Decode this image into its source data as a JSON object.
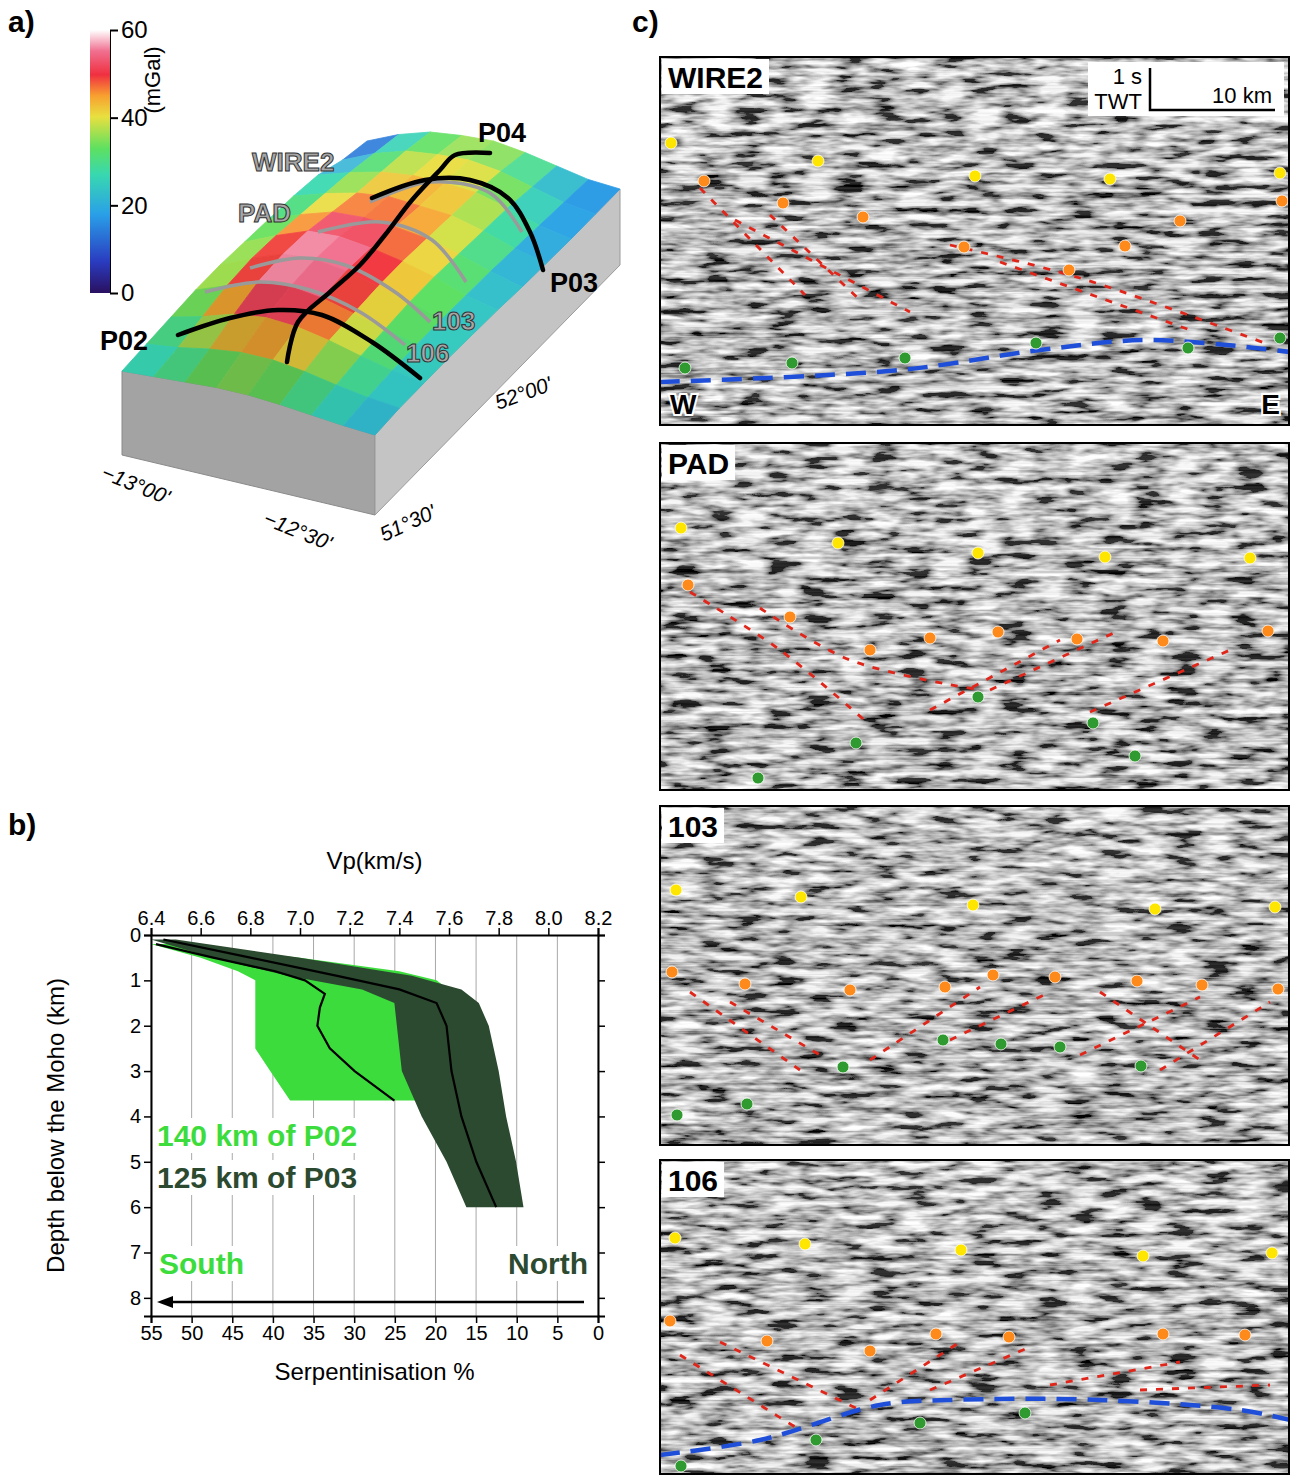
{
  "panel_labels": [
    "a)",
    "b)",
    "c)"
  ],
  "panel_a": {
    "colorbar": {
      "label": "(mGal)",
      "range": [
        0,
        60
      ],
      "ticks": [
        0,
        20,
        40,
        60
      ]
    },
    "gravity": {
      "values": [
        [
          24,
          26,
          28,
          30,
          30,
          28,
          25,
          22,
          20
        ],
        [
          26,
          30,
          36,
          40,
          40,
          36,
          30,
          25,
          22
        ],
        [
          28,
          36,
          46,
          50,
          48,
          42,
          34,
          27,
          22
        ],
        [
          30,
          42,
          54,
          56,
          52,
          44,
          36,
          28,
          22
        ],
        [
          30,
          44,
          56,
          58,
          54,
          46,
          38,
          28,
          21
        ],
        [
          28,
          42,
          54,
          56,
          52,
          46,
          38,
          27,
          20
        ],
        [
          26,
          38,
          48,
          50,
          48,
          44,
          36,
          26,
          18
        ],
        [
          24,
          34,
          42,
          46,
          44,
          42,
          34,
          24,
          17
        ],
        [
          20,
          30,
          38,
          42,
          42,
          40,
          32,
          22,
          16
        ],
        [
          10,
          24,
          34,
          38,
          40,
          36,
          28,
          20,
          16
        ],
        [
          4,
          18,
          28,
          32,
          34,
          30,
          24,
          18,
          16
        ]
      ]
    },
    "lines": {
      "seismic": [
        "WIRE2",
        "PAD",
        "103",
        "106"
      ],
      "refraction": [
        "P02",
        "P03",
        "P04"
      ]
    },
    "axis_labels": [
      "−13°00'",
      "−12°30'",
      "51°30'",
      "52°00'"
    ]
  },
  "chart_data": {
    "type": "line",
    "x_label": "Vp(km/s)",
    "y_label": "Depth below the Moho (km)",
    "x2_label": "Serpentinisation %",
    "xlim": [
      6.4,
      8.2
    ],
    "xticks": [
      6.4,
      6.6,
      6.8,
      {
        "value": 7,
        "label": "7.0"
      },
      7.2,
      7.4,
      7.6,
      7.8,
      {
        "value": 8,
        "label": "8.0"
      },
      8.2
    ],
    "ylim": [
      0,
      8.4
    ],
    "yticks": [
      0,
      1,
      2,
      3,
      4,
      5,
      6,
      7,
      8
    ],
    "x2lim": [
      55,
      0
    ],
    "x2ticks": [
      55,
      50,
      45,
      40,
      35,
      30,
      25,
      20,
      15,
      10,
      5,
      0
    ],
    "grid": true,
    "series": [
      {
        "name": "140 km of P02",
        "color": "#3ddc3d",
        "y": [
          0.2,
          0.5,
          0.8,
          1.0,
          1.3,
          1.6,
          2.0,
          2.5,
          3.0,
          3.65
        ],
        "values": [
          6.42,
          6.65,
          6.9,
          7.02,
          7.1,
          7.08,
          7.07,
          7.12,
          7.22,
          7.38
        ],
        "values_min": [
          6.4,
          6.6,
          6.75,
          6.82,
          6.82,
          6.82,
          6.82,
          6.82,
          6.88,
          6.96
        ],
        "values_max": [
          6.5,
          7.0,
          7.4,
          7.55,
          7.62,
          7.58,
          7.55,
          7.58,
          7.65,
          7.75
        ]
      },
      {
        "name": "125 km of P03",
        "color": "#2c4a30",
        "y": [
          0.1,
          0.5,
          0.9,
          1.2,
          1.5,
          2,
          3,
          4,
          5,
          6
        ],
        "values": [
          6.45,
          6.8,
          7.15,
          7.4,
          7.55,
          7.59,
          7.61,
          7.65,
          7.71,
          7.79
        ],
        "values_min": [
          6.4,
          6.65,
          6.95,
          7.25,
          7.38,
          7.39,
          7.41,
          7.49,
          7.59,
          7.67
        ],
        "values_max": [
          6.5,
          7.0,
          7.45,
          7.65,
          7.72,
          7.76,
          7.8,
          7.83,
          7.87,
          7.9
        ]
      }
    ],
    "annotations": [
      "South",
      "North"
    ]
  },
  "panel_c": {
    "profiles": [
      "WIRE2",
      "PAD",
      "103",
      "106"
    ],
    "scale_bar": {
      "time": "1 s",
      "time_unit": "TWT",
      "distance": "10 km"
    },
    "directions": [
      "W",
      "E"
    ]
  }
}
